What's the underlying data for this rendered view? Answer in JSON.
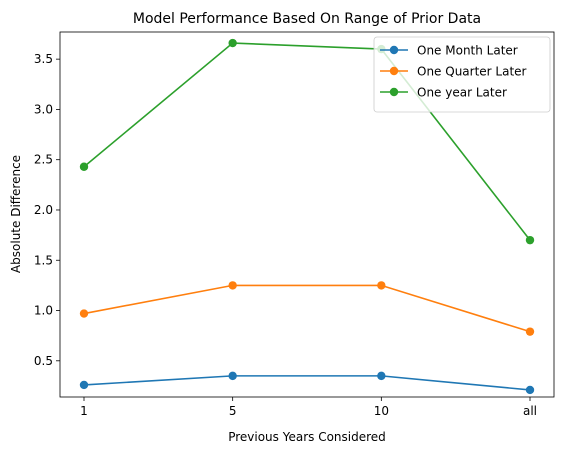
{
  "chart_data": {
    "type": "line",
    "title": "Model Performance Based On Range of Prior Data",
    "xlabel": "Previous Years Considered",
    "ylabel": "Absolute Difference",
    "categories": [
      "1",
      "5",
      "10",
      "all"
    ],
    "ylim": [
      0.14,
      3.77
    ],
    "yticks": [
      "0.5",
      "1.0",
      "1.5",
      "2.0",
      "2.5",
      "3.0",
      "3.5"
    ],
    "grid": false,
    "legend_position": "top-right",
    "series": [
      {
        "name": "One Month Later",
        "color": "#1f77b4",
        "values": [
          0.26,
          0.35,
          0.35,
          0.21
        ]
      },
      {
        "name": "One Quarter Later",
        "color": "#ff7f0e",
        "values": [
          0.97,
          1.25,
          1.25,
          0.79
        ]
      },
      {
        "name": "One year Later",
        "color": "#2ca02c",
        "values": [
          2.43,
          3.66,
          3.6,
          1.7
        ]
      }
    ]
  }
}
